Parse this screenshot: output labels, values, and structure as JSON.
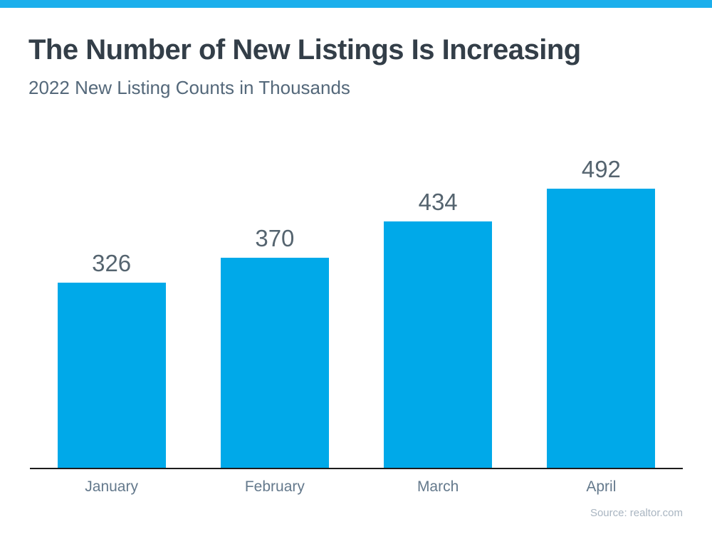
{
  "header": {
    "title": "The Number of New Listings Is Increasing",
    "subtitle": "2022 New Listing Counts in Thousands"
  },
  "chart_data": {
    "type": "bar",
    "title": "The Number of New Listings Is Increasing",
    "subtitle": "2022 New Listing Counts in Thousands",
    "categories": [
      "January",
      "February",
      "March",
      "April"
    ],
    "values": [
      326,
      370,
      434,
      492
    ],
    "xlabel": "",
    "ylabel": "",
    "ylim": [
      0,
      492
    ],
    "grid": false,
    "legend": false,
    "bar_color": "#00A9E9",
    "value_label_position": "above-bar"
  },
  "footer": {
    "source": "Source: realtor.com"
  },
  "colors": {
    "accent_bar": "#1BAFEC",
    "bar_fill": "#00A9E9",
    "title": "#333E48",
    "subtitle": "#54687A",
    "value_label": "#55646F",
    "month_label": "#64798C",
    "axis_line": "#1C1C1C",
    "source": "#A9B5C1"
  }
}
